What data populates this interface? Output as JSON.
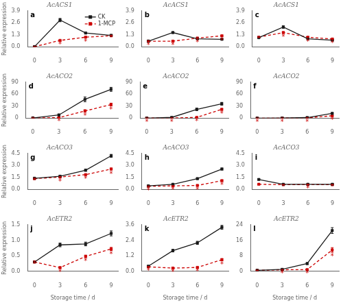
{
  "chart_data": [
    {
      "type": "line",
      "title": "AcACS1",
      "panel_label": "a",
      "x": [
        0,
        3,
        6,
        9
      ],
      "xlim": [
        -0.8,
        9.8
      ],
      "xticks": [
        0,
        3,
        6,
        9
      ],
      "ylim": [
        0,
        3.9
      ],
      "yticks": [
        {
          "value": 0,
          "label": "0.0"
        },
        1.3,
        2.6,
        3.9
      ],
      "grid": false,
      "legend": "upper right",
      "ylabel": "Relative expression",
      "series": [
        {
          "name": "CK",
          "color": "#1a1a1a",
          "marker": "square",
          "line_style": "solid",
          "values": [
            0.02,
            2.9,
            1.5,
            1.25
          ],
          "errors": [
            0.01,
            0.18,
            0.07,
            0.05
          ]
        },
        {
          "name": "1-MCP",
          "color": "#cc0000",
          "marker": "square",
          "line_style": "dashed",
          "values": [
            0.02,
            0.7,
            1.05,
            1.2
          ],
          "errors": [
            0.01,
            0.05,
            0.07,
            0.06
          ]
        }
      ],
      "annotations": [
        {
          "text": "*",
          "x": 3,
          "series": "1-MCP"
        },
        {
          "text": "*",
          "x": 6,
          "series": "1-MCP"
        }
      ]
    },
    {
      "type": "line",
      "title": "AcACS1",
      "panel_label": "b",
      "x": [
        0,
        3,
        6,
        9
      ],
      "xlim": [
        -0.8,
        9.8
      ],
      "xticks": [
        0,
        3,
        6,
        9
      ],
      "ylim": [
        0,
        3.9
      ],
      "yticks": [
        {
          "value": 0,
          "label": "0.0"
        },
        1.3,
        2.6,
        3.9
      ],
      "grid": false,
      "series": [
        {
          "name": "CK",
          "color": "#1a1a1a",
          "marker": "square",
          "line_style": "solid",
          "values": [
            0.62,
            1.55,
            0.88,
            0.82
          ],
          "errors": [
            0.04,
            0.09,
            0.04,
            0.03
          ]
        },
        {
          "name": "1-MCP",
          "color": "#cc0000",
          "marker": "square",
          "line_style": "dashed",
          "values": [
            0.62,
            0.62,
            0.95,
            1.2
          ],
          "errors": [
            0.04,
            0.04,
            0.06,
            0.07
          ]
        }
      ],
      "annotations": [
        {
          "text": "*",
          "x": 0,
          "series": "1-MCP"
        },
        {
          "text": "*",
          "x": 3,
          "series": "1-MCP"
        },
        {
          "text": "*",
          "x": 6,
          "series": "1-MCP"
        },
        {
          "text": "*",
          "x": 9,
          "series": "1-MCP"
        }
      ]
    },
    {
      "type": "line",
      "title": "AcACS1",
      "panel_label": "c",
      "x": [
        0,
        3,
        6,
        9
      ],
      "xlim": [
        -0.8,
        9.8
      ],
      "xticks": [
        0,
        3,
        6,
        9
      ],
      "ylim": [
        0,
        3.9
      ],
      "yticks": [
        {
          "value": 0,
          "label": "0.0"
        },
        1.3,
        2.6,
        3.9
      ],
      "grid": false,
      "series": [
        {
          "name": "CK",
          "color": "#1a1a1a",
          "marker": "square",
          "line_style": "solid",
          "values": [
            1.0,
            2.15,
            0.88,
            0.72
          ],
          "errors": [
            0.04,
            0.13,
            0.04,
            0.03
          ]
        },
        {
          "name": "1-MCP",
          "color": "#cc0000",
          "marker": "square",
          "line_style": "dashed",
          "values": [
            1.05,
            1.55,
            1.05,
            0.85
          ],
          "errors": [
            0.03,
            0.09,
            0.05,
            0.04
          ]
        }
      ],
      "annotations": [
        {
          "text": "*",
          "x": 3,
          "series": "1-MCP"
        },
        {
          "text": "*",
          "x": 6,
          "series": "1-MCP"
        },
        {
          "text": "*",
          "x": 9,
          "series": "1-MCP"
        }
      ]
    },
    {
      "type": "line",
      "title": "AcACO2",
      "panel_label": "d",
      "x": [
        0,
        3,
        6,
        9
      ],
      "xlim": [
        -0.8,
        9.8
      ],
      "xticks": [
        0,
        3,
        6,
        9
      ],
      "ylim": [
        0,
        90
      ],
      "yticks": [
        0,
        30,
        60,
        90
      ],
      "grid": false,
      "ylabel": "Relative expression",
      "series": [
        {
          "name": "CK",
          "color": "#1a1a1a",
          "marker": "square",
          "line_style": "solid",
          "values": [
            0.5,
            8.0,
            47.0,
            72.0
          ],
          "errors": [
            0.2,
            2.5,
            6.0,
            5.0
          ]
        },
        {
          "name": "1-MCP",
          "color": "#cc0000",
          "marker": "square",
          "line_style": "dashed",
          "values": [
            0.5,
            1.5,
            18.0,
            34.0
          ],
          "errors": [
            0.1,
            0.5,
            3.0,
            3.5
          ]
        }
      ],
      "annotations": [
        {
          "text": "*",
          "x": 3,
          "series": "1-MCP"
        },
        {
          "text": "*",
          "x": 6,
          "series": "1-MCP"
        },
        {
          "text": "*",
          "x": 9,
          "series": "1-MCP"
        }
      ]
    },
    {
      "type": "line",
      "title": "AcACO2",
      "panel_label": "e",
      "x": [
        0,
        3,
        6,
        9
      ],
      "xlim": [
        -0.8,
        9.8
      ],
      "xticks": [
        0,
        3,
        6,
        9
      ],
      "ylim": [
        0,
        90
      ],
      "yticks": [
        0,
        30,
        60,
        90
      ],
      "grid": false,
      "series": [
        {
          "name": "CK",
          "color": "#1a1a1a",
          "marker": "square",
          "line_style": "solid",
          "values": [
            0.2,
            2.0,
            22.0,
            36.0
          ],
          "errors": [
            0.1,
            0.5,
            3.0,
            3.5
          ]
        },
        {
          "name": "1-MCP",
          "color": "#cc0000",
          "marker": "square",
          "line_style": "dashed",
          "values": [
            0.2,
            0.5,
            2.0,
            22.0
          ],
          "errors": [
            0.05,
            0.1,
            0.3,
            2.0
          ]
        }
      ],
      "annotations": [
        {
          "text": "*",
          "x": 0,
          "series": "1-MCP"
        },
        {
          "text": "*",
          "x": 3,
          "series": "1-MCP"
        },
        {
          "text": "*",
          "x": 6,
          "series": "1-MCP"
        },
        {
          "text": "*",
          "x": 9,
          "series": "1-MCP"
        }
      ]
    },
    {
      "type": "line",
      "title": "AcACO2",
      "panel_label": "f",
      "x": [
        0,
        3,
        6,
        9
      ],
      "xlim": [
        -0.8,
        9.8
      ],
      "xticks": [
        0,
        3,
        6,
        9
      ],
      "ylim": [
        0,
        90
      ],
      "yticks": [
        0,
        30,
        60,
        90
      ],
      "grid": false,
      "series": [
        {
          "name": "CK",
          "color": "#1a1a1a",
          "marker": "square",
          "line_style": "solid",
          "values": [
            0.1,
            0.3,
            1.5,
            12.0
          ],
          "errors": [
            0.02,
            0.05,
            0.2,
            1.5
          ]
        },
        {
          "name": "1-MCP",
          "color": "#cc0000",
          "marker": "square",
          "line_style": "dashed",
          "values": [
            0.1,
            0.2,
            0.8,
            6.0
          ],
          "errors": [
            0.02,
            0.03,
            0.1,
            0.8
          ]
        }
      ],
      "annotations": [
        {
          "text": "*",
          "x": 0,
          "series": "1-MCP"
        },
        {
          "text": "*",
          "x": 3,
          "series": "1-MCP"
        },
        {
          "text": "*",
          "x": 6,
          "series": "1-MCP"
        },
        {
          "text": "*",
          "x": 9,
          "series": "1-MCP"
        }
      ]
    },
    {
      "type": "line",
      "title": "AcACO3",
      "panel_label": "g",
      "x": [
        0,
        3,
        6,
        9
      ],
      "xlim": [
        -0.8,
        9.8
      ],
      "xticks": [
        0,
        3,
        6,
        9
      ],
      "ylim": [
        0,
        4.5
      ],
      "yticks": [
        {
          "value": 0,
          "label": "0.0"
        },
        1.5,
        {
          "value": 3,
          "label": "3.0"
        },
        4.5
      ],
      "grid": false,
      "ylabel": "Relative expression",
      "series": [
        {
          "name": "CK",
          "color": "#1a1a1a",
          "marker": "square",
          "line_style": "solid",
          "values": [
            1.4,
            1.65,
            2.4,
            4.2
          ],
          "errors": [
            0.05,
            0.08,
            0.12,
            0.18
          ]
        },
        {
          "name": "1-MCP",
          "color": "#cc0000",
          "marker": "square",
          "line_style": "dashed",
          "values": [
            1.35,
            1.55,
            1.85,
            2.55
          ],
          "errors": [
            0.05,
            0.06,
            0.08,
            0.12
          ]
        }
      ],
      "annotations": [
        {
          "text": "*",
          "x": 3,
          "series": "1-MCP"
        },
        {
          "text": "*",
          "x": 6,
          "series": "1-MCP"
        },
        {
          "text": "*",
          "x": 9,
          "series": "1-MCP"
        }
      ]
    },
    {
      "type": "line",
      "title": "AcACO3",
      "panel_label": "h",
      "x": [
        0,
        3,
        6,
        9
      ],
      "xlim": [
        -0.8,
        9.8
      ],
      "xticks": [
        0,
        3,
        6,
        9
      ],
      "ylim": [
        0,
        4.5
      ],
      "yticks": [
        {
          "value": 0,
          "label": "0.0"
        },
        1.5,
        {
          "value": 3,
          "label": "3.0"
        },
        4.5
      ],
      "grid": false,
      "series": [
        {
          "name": "CK",
          "color": "#1a1a1a",
          "marker": "square",
          "line_style": "solid",
          "values": [
            0.45,
            0.65,
            1.35,
            2.55
          ],
          "errors": [
            0.04,
            0.05,
            0.08,
            0.12
          ]
        },
        {
          "name": "1-MCP",
          "color": "#cc0000",
          "marker": "square",
          "line_style": "dashed",
          "values": [
            0.4,
            0.45,
            0.5,
            1.1
          ],
          "errors": [
            0.03,
            0.03,
            0.04,
            0.08
          ]
        }
      ],
      "annotations": [
        {
          "text": "*",
          "x": 0,
          "series": "1-MCP"
        },
        {
          "text": "*",
          "x": 3,
          "series": "1-MCP"
        },
        {
          "text": "*",
          "x": 6,
          "series": "1-MCP"
        },
        {
          "text": "*",
          "x": 9,
          "series": "1-MCP"
        }
      ]
    },
    {
      "type": "line",
      "title": "AcACO3",
      "panel_label": "i",
      "x": [
        0,
        3,
        6,
        9
      ],
      "xlim": [
        -0.8,
        9.8
      ],
      "xticks": [
        0,
        3,
        6,
        9
      ],
      "ylim": [
        0,
        4.5
      ],
      "yticks": [
        {
          "value": 0,
          "label": "0.0"
        },
        1.5,
        {
          "value": 3,
          "label": "3.0"
        },
        4.5
      ],
      "grid": false,
      "series": [
        {
          "name": "CK",
          "color": "#1a1a1a",
          "marker": "square",
          "line_style": "solid",
          "values": [
            1.25,
            0.65,
            0.65,
            0.65
          ],
          "errors": [
            0.08,
            0.04,
            0.04,
            0.04
          ]
        },
        {
          "name": "1-MCP",
          "color": "#cc0000",
          "marker": "square",
          "line_style": "dashed",
          "values": [
            0.65,
            0.6,
            0.62,
            0.6
          ],
          "errors": [
            0.04,
            0.03,
            0.03,
            0.03
          ]
        }
      ],
      "annotations": [
        {
          "text": "*",
          "x": 6,
          "series": "1-MCP"
        }
      ]
    },
    {
      "type": "line",
      "title": "AcETR2",
      "panel_label": "j",
      "x": [
        0,
        3,
        6,
        9
      ],
      "xlim": [
        -0.8,
        9.8
      ],
      "xticks": [
        0,
        3,
        6,
        9
      ],
      "ylim": [
        0,
        1.5
      ],
      "yticks": [
        {
          "value": 0,
          "label": "0.0"
        },
        0.5,
        {
          "value": 1,
          "label": "1.0"
        },
        1.5
      ],
      "grid": false,
      "ylabel": "Relative expression",
      "xlabel": "Storage time / d",
      "series": [
        {
          "name": "CK",
          "color": "#1a1a1a",
          "marker": "square",
          "line_style": "solid",
          "values": [
            0.3,
            0.85,
            0.88,
            1.22
          ],
          "errors": [
            0.03,
            0.06,
            0.06,
            0.08
          ]
        },
        {
          "name": "1-MCP",
          "color": "#cc0000",
          "marker": "square",
          "line_style": "dashed",
          "values": [
            0.3,
            0.12,
            0.48,
            0.72
          ],
          "errors": [
            0.03,
            0.02,
            0.04,
            0.05
          ]
        }
      ],
      "annotations": [
        {
          "text": "*",
          "x": 3,
          "series": "1-MCP"
        },
        {
          "text": "*",
          "x": 6,
          "series": "1-MCP"
        },
        {
          "text": "*",
          "x": 9,
          "series": "1-MCP"
        }
      ]
    },
    {
      "type": "line",
      "title": "AcETR2",
      "panel_label": "k",
      "x": [
        0,
        3,
        6,
        9
      ],
      "xlim": [
        -0.8,
        9.8
      ],
      "xticks": [
        0,
        3,
        6,
        9
      ],
      "ylim": [
        0,
        3.6
      ],
      "yticks": [
        {
          "value": 0,
          "label": "0.0"
        },
        1.2,
        2.4,
        3.6
      ],
      "grid": false,
      "xlabel": "Storage time / d",
      "series": [
        {
          "name": "CK",
          "color": "#1a1a1a",
          "marker": "square",
          "line_style": "solid",
          "values": [
            0.4,
            1.6,
            2.2,
            3.4
          ],
          "errors": [
            0.03,
            0.1,
            0.12,
            0.15
          ]
        },
        {
          "name": "1-MCP",
          "color": "#cc0000",
          "marker": "square",
          "line_style": "dashed",
          "values": [
            0.35,
            0.25,
            0.3,
            0.9
          ],
          "errors": [
            0.03,
            0.03,
            0.03,
            0.08
          ]
        }
      ],
      "annotations": [
        {
          "text": "*",
          "x": 0,
          "series": "1-MCP"
        },
        {
          "text": "*",
          "x": 3,
          "series": "1-MCP"
        },
        {
          "text": "*",
          "x": 6,
          "series": "1-MCP"
        },
        {
          "text": "*",
          "x": 9,
          "series": "1-MCP"
        }
      ]
    },
    {
      "type": "line",
      "title": "AcETR2",
      "panel_label": "l",
      "x": [
        0,
        3,
        6,
        9
      ],
      "xlim": [
        -0.8,
        9.8
      ],
      "xticks": [
        0,
        3,
        6,
        9
      ],
      "ylim": [
        0,
        24
      ],
      "yticks": [
        0,
        8,
        16,
        24
      ],
      "grid": false,
      "xlabel": "Storage time / d",
      "series": [
        {
          "name": "CK",
          "color": "#1a1a1a",
          "marker": "square",
          "line_style": "solid",
          "values": [
            0.5,
            1.0,
            4.0,
            21.0
          ],
          "errors": [
            0.1,
            0.2,
            0.5,
            1.5
          ]
        },
        {
          "name": "1-MCP",
          "color": "#cc0000",
          "marker": "square",
          "line_style": "dashed",
          "values": [
            0.5,
            0.8,
            0.9,
            11.0
          ],
          "errors": [
            0.1,
            0.1,
            0.1,
            1.2
          ]
        }
      ],
      "annotations": [
        {
          "text": "*",
          "x": 3,
          "series": "1-MCP"
        },
        {
          "text": "*",
          "x": 6,
          "series": "1-MCP"
        },
        {
          "text": "*",
          "x": 9,
          "series": "1-MCP"
        }
      ]
    }
  ]
}
